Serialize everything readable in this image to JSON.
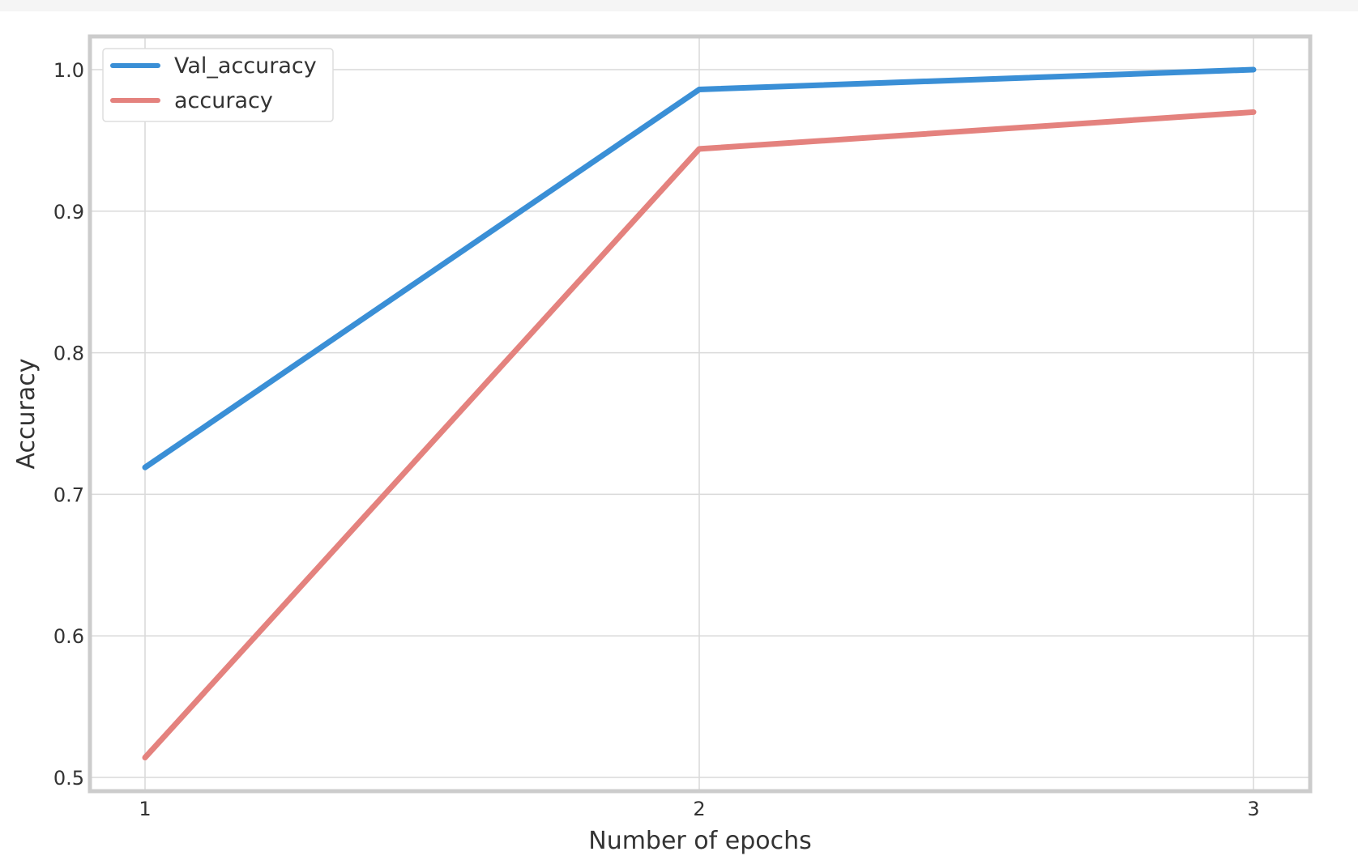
{
  "chart_data": {
    "type": "line",
    "title": "",
    "xlabel": "Number of epochs",
    "ylabel": "Accuracy",
    "x": [
      1,
      2,
      3
    ],
    "xticks": [
      "1",
      "2",
      "3"
    ],
    "yticks": [
      "0.5",
      "0.6",
      "0.7",
      "0.8",
      "0.9",
      "1.0"
    ],
    "ytick_values": [
      0.5,
      0.6,
      0.7,
      0.8,
      0.9,
      1.0
    ],
    "xlim": [
      0.9,
      3.1
    ],
    "ylim": [
      0.49,
      1.025
    ],
    "grid": true,
    "legend_position": "top-left",
    "series": [
      {
        "name": "Val_accuracy",
        "values": [
          0.719,
          0.986,
          1.0
        ],
        "color": "#3a8fd6"
      },
      {
        "name": "accuracy",
        "values": [
          0.514,
          0.944,
          0.97
        ],
        "color": "#e4827e"
      }
    ]
  }
}
